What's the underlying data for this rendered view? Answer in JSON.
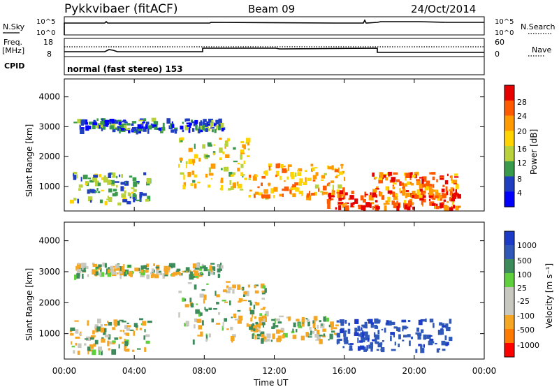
{
  "header": {
    "station": "Pykkvibaer (fitACF)",
    "beam": "Beam 09",
    "date": "24/Oct/2014"
  },
  "noise_panel": {
    "left_label": "N.Sky",
    "left_ticks": [
      "10^5",
      "10^0"
    ],
    "right_label": "N.Search",
    "right_ticks": [
      "10^5",
      "10^0"
    ]
  },
  "freq_panel": {
    "left_label_1": "Freq.",
    "left_label_2": "[MHz]",
    "left_ticks": [
      "18",
      "8"
    ],
    "right_label": "Nave",
    "right_ticks": [
      "60",
      "0"
    ]
  },
  "cpid_panel": {
    "label": "CPID",
    "mode_text": "normal (fast stereo) 153"
  },
  "power_panel": {
    "ylabel": "Slant Range [km]",
    "cbar_label": "Power [dB]",
    "cbar_ticks": [
      "28",
      "24",
      "20",
      "16",
      "12",
      "8",
      "4"
    ],
    "cbar_colors": [
      "#e60000",
      "#ff5a00",
      "#ff9a00",
      "#ffd400",
      "#b9d23b",
      "#3a9a4c",
      "#1f3fc0",
      "#0000ff"
    ]
  },
  "velocity_panel": {
    "ylabel": "Slant Range [km]",
    "cbar_label": "Velocity [m s⁻¹]",
    "cbar_ticks": [
      "1000",
      "500",
      "100",
      "25",
      "-25",
      "-100",
      "-500",
      "-1000"
    ],
    "cbar_colors": [
      "#1c3cc8",
      "#2f58b8",
      "#3d8a5a",
      "#5fcf3d",
      "#c8c8c0",
      "#c8c8c0",
      "#f5a623",
      "#ff7a00",
      "#ff0000"
    ]
  },
  "xaxis": {
    "label": "Time UT",
    "ticks": [
      "00:00",
      "04:00",
      "08:00",
      "12:00",
      "16:00",
      "20:00",
      "00:00"
    ]
  },
  "chart_data": [
    {
      "type": "heatmap",
      "title": "Power [dB]",
      "xlabel": "Time UT",
      "ylabel": "Slant Range [km]",
      "xlim": [
        0,
        24
      ],
      "ylim": [
        180,
        4600
      ],
      "y_ticks": [
        1000,
        2000,
        3000,
        4000
      ],
      "colorbar_range": [
        0,
        30
      ],
      "regions": [
        {
          "name": "early",
          "t": [
            0.3,
            4.8
          ],
          "r": [
            450,
            1500
          ],
          "value": 10
        },
        {
          "name": "arc",
          "t": [
            6.5,
            10.5
          ],
          "r": [
            900,
            2700
          ],
          "value": 16
        },
        {
          "name": "midday",
          "t": [
            10.5,
            16.0
          ],
          "r": [
            700,
            1800
          ],
          "value": 20
        },
        {
          "name": "nearrange",
          "t": [
            15.0,
            22.5
          ],
          "r": [
            300,
            900
          ],
          "value": 26
        },
        {
          "name": "evening",
          "t": [
            17.5,
            22.5
          ],
          "r": [
            700,
            1500
          ],
          "value": 24
        },
        {
          "name": "upper",
          "t": [
            0.5,
            9.0
          ],
          "r": [
            2900,
            3300
          ],
          "value": 6
        }
      ]
    },
    {
      "type": "heatmap",
      "title": "Velocity [m s⁻¹]",
      "xlabel": "Time UT",
      "ylabel": "Slant Range [km]",
      "xlim": [
        0,
        24
      ],
      "ylim": [
        180,
        4600
      ],
      "y_ticks": [
        1000,
        2000,
        3000,
        4000
      ],
      "colorbar_range": [
        -1000,
        1000
      ],
      "regions": [
        {
          "name": "early",
          "t": [
            0.3,
            4.8
          ],
          "r": [
            450,
            1500
          ],
          "value": -50
        },
        {
          "name": "arc",
          "t": [
            6.5,
            11.5
          ],
          "r": [
            800,
            2700
          ],
          "value": 0
        },
        {
          "name": "midday",
          "t": [
            10.5,
            15.5
          ],
          "r": [
            800,
            1600
          ],
          "value": 0
        },
        {
          "name": "afternoon",
          "t": [
            15.5,
            22.0
          ],
          "r": [
            500,
            1500
          ],
          "value": 600
        },
        {
          "name": "upper",
          "t": [
            0.5,
            9.0
          ],
          "r": [
            2900,
            3300
          ],
          "value": 0
        }
      ]
    }
  ]
}
